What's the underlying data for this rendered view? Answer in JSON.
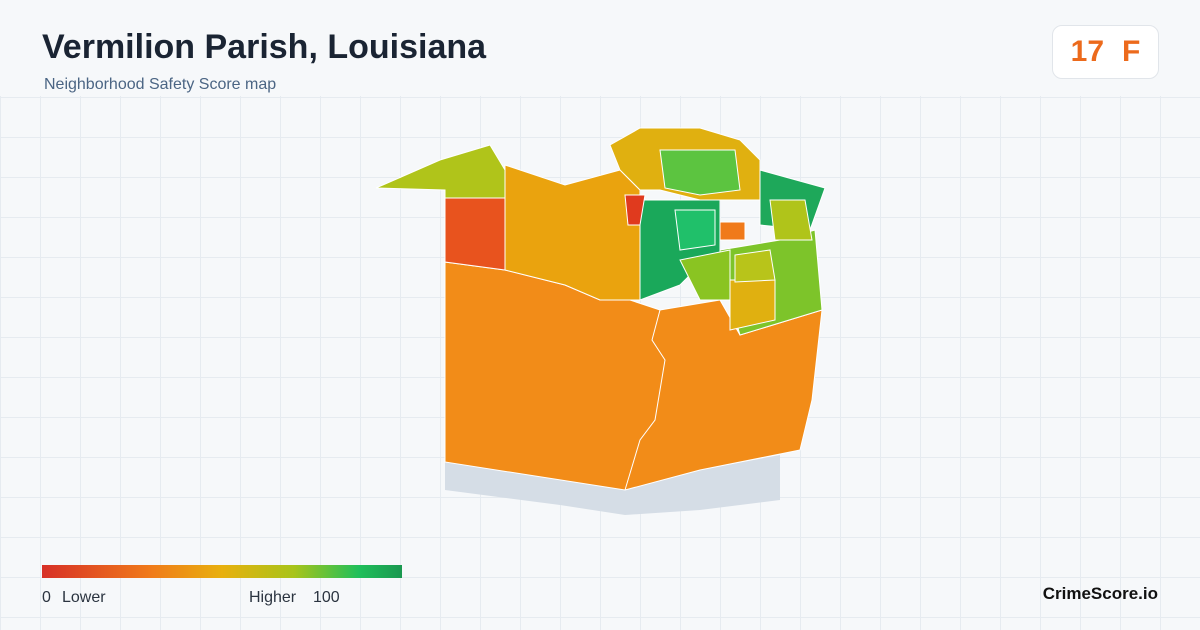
{
  "header": {
    "title": "Vermilion Parish, Louisiana",
    "subtitle": "Neighborhood Safety Score map"
  },
  "score": {
    "value": 17,
    "grade": "F"
  },
  "legend": {
    "min": 0,
    "min_label": "Lower",
    "max_label": "Higher",
    "max": 100
  },
  "brand": "CrimeScore.io"
}
